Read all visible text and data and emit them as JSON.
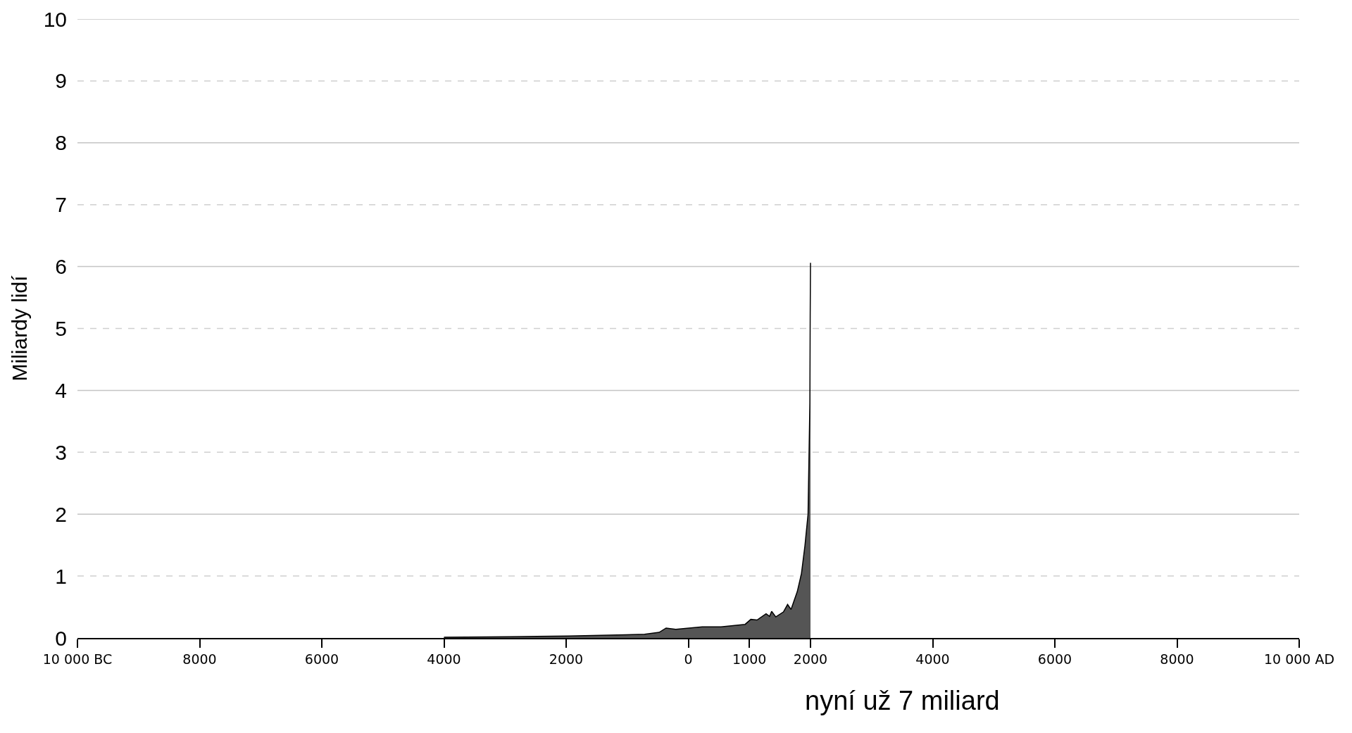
{
  "chart_data": {
    "type": "area",
    "ylabel": "Miliardy lidí",
    "annotations": [
      "nyní už 7 miliard"
    ],
    "x": [
      -4000,
      -2900,
      -1966,
      -1023,
      -716,
      -477,
      -364,
      -205,
      227,
      534,
      930,
      1023,
      1125,
      1273,
      1330,
      1364,
      1432,
      1557,
      1625,
      1682,
      1784,
      1852,
      1909,
      1960,
      1990,
      1995,
      2000
    ],
    "series": [
      {
        "color": "#555555",
        "values": [
          0.01,
          0.02,
          0.03,
          0.05,
          0.06,
          0.09,
          0.16,
          0.14,
          0.18,
          0.18,
          0.22,
          0.3,
          0.29,
          0.39,
          0.35,
          0.43,
          0.34,
          0.42,
          0.54,
          0.46,
          0.75,
          1.04,
          1.49,
          2.0,
          3.8,
          5.2,
          6.06
        ]
      }
    ],
    "xlim": [
      -10000,
      10000
    ],
    "xticks": [
      {
        "value": -10000,
        "label": "10 000 BC"
      },
      {
        "value": -8000,
        "label": "8000"
      },
      {
        "value": -6000,
        "label": "6000"
      },
      {
        "value": -4000,
        "label": "4000"
      },
      {
        "value": -2000,
        "label": "2000"
      },
      0,
      1000,
      2000,
      4000,
      6000,
      8000,
      {
        "value": 10000,
        "label": "10 000 AD"
      }
    ],
    "ylim": [
      0,
      10
    ],
    "yticks": [
      0,
      1,
      2,
      3,
      4,
      5,
      6,
      7,
      8,
      9,
      10
    ],
    "grid": true
  }
}
